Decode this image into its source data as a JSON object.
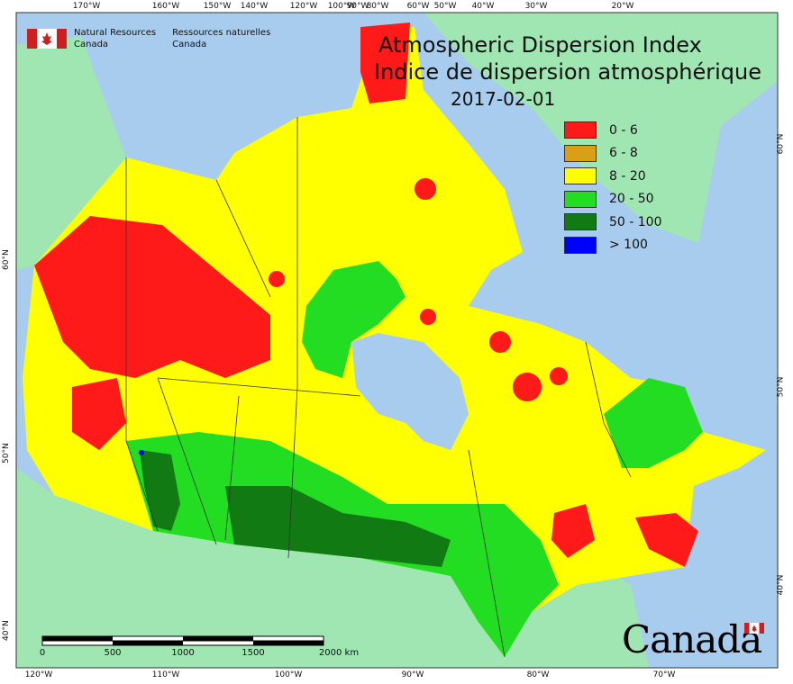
{
  "title": {
    "en": "Atmospheric Dispersion Index",
    "fr": "Indice de dispersion atmosphérique",
    "date": "2017-02-01"
  },
  "agency": {
    "name_en_line1": "Natural Resources",
    "name_en_line2": "Canada",
    "name_fr_line1": "Ressources naturelles",
    "name_fr_line2": "Canada"
  },
  "wordmark": "Canada",
  "legend": [
    {
      "label": "0 - 6",
      "color": "#ff1a1a"
    },
    {
      "label": "6 - 8",
      "color": "#d9a017"
    },
    {
      "label": "8 - 20",
      "color": "#ffff00"
    },
    {
      "label": "20 - 50",
      "color": "#22dd22"
    },
    {
      "label": "50 - 100",
      "color": "#127a12"
    },
    {
      "label": "> 100",
      "color": "#0000ff"
    }
  ],
  "axis_top": [
    "170°W",
    "160°W",
    "150°W",
    "140°W",
    "120°W",
    "100°W",
    "90°W",
    "80°W",
    "60°W",
    "50°W",
    "40°W",
    "30°W",
    "20°W"
  ],
  "axis_bottom": [
    "120°W",
    "110°W",
    "100°W",
    "90°W",
    "80°W",
    "70°W"
  ],
  "axis_left": [
    "60°N",
    "50°N",
    "40°N"
  ],
  "axis_right": [
    "60°N",
    "50°N",
    "40°N"
  ],
  "scale": {
    "ticks": [
      "0",
      "500",
      "1000",
      "1500",
      "2000 km"
    ]
  },
  "colors": {
    "water": "#a8ccee",
    "foreign_land": "#9fe6b3",
    "boundary": "#333333"
  }
}
